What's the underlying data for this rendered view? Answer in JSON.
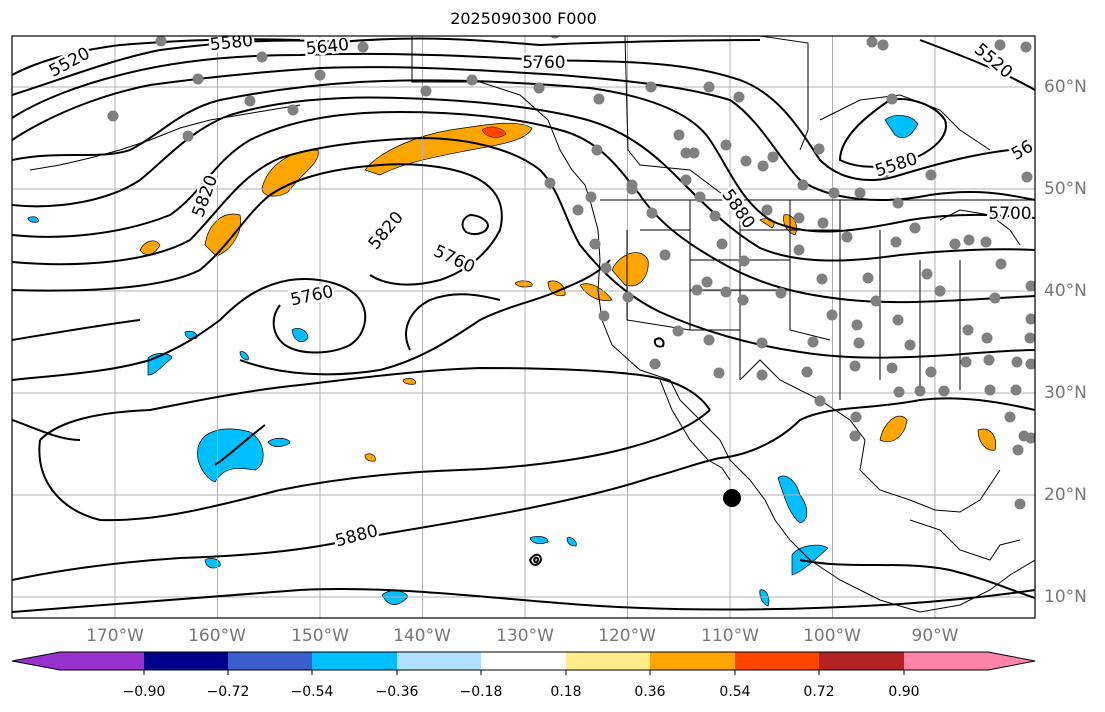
{
  "title": "2025090300 F000",
  "lon_labels": [
    "170°W",
    "160°W",
    "150°W",
    "140°W",
    "130°W",
    "120°W",
    "110°W",
    "100°W",
    "90°W"
  ],
  "lat_labels": [
    "60°N",
    "50°N",
    "40°N",
    "30°N",
    "20°N",
    "10°N"
  ],
  "contour_labels": [
    "5520",
    "5580",
    "5640",
    "5760",
    "5820",
    "5820",
    "5760",
    "5760",
    "5880",
    "5880",
    "5580",
    "5700",
    "5520",
    "56"
  ],
  "colorbar": {
    "colors": [
      "#9932CC",
      "#00008B",
      "#3A5FCD",
      "#00BFFF",
      "#B0E2FF",
      "#FFFFFF",
      "#FFEC8B",
      "#FFA500",
      "#FF4500",
      "#B22222",
      "#FF82AB"
    ],
    "tick_labels": [
      "−0.90",
      "−0.72",
      "−0.54",
      "−0.36",
      "−0.18",
      "0.18",
      "0.36",
      "0.54",
      "0.72",
      "0.90"
    ]
  },
  "colors": {
    "positive": "#FFA500",
    "negative": "#00BFFF",
    "station": "#808080",
    "grid": "#B0B0B0"
  }
}
